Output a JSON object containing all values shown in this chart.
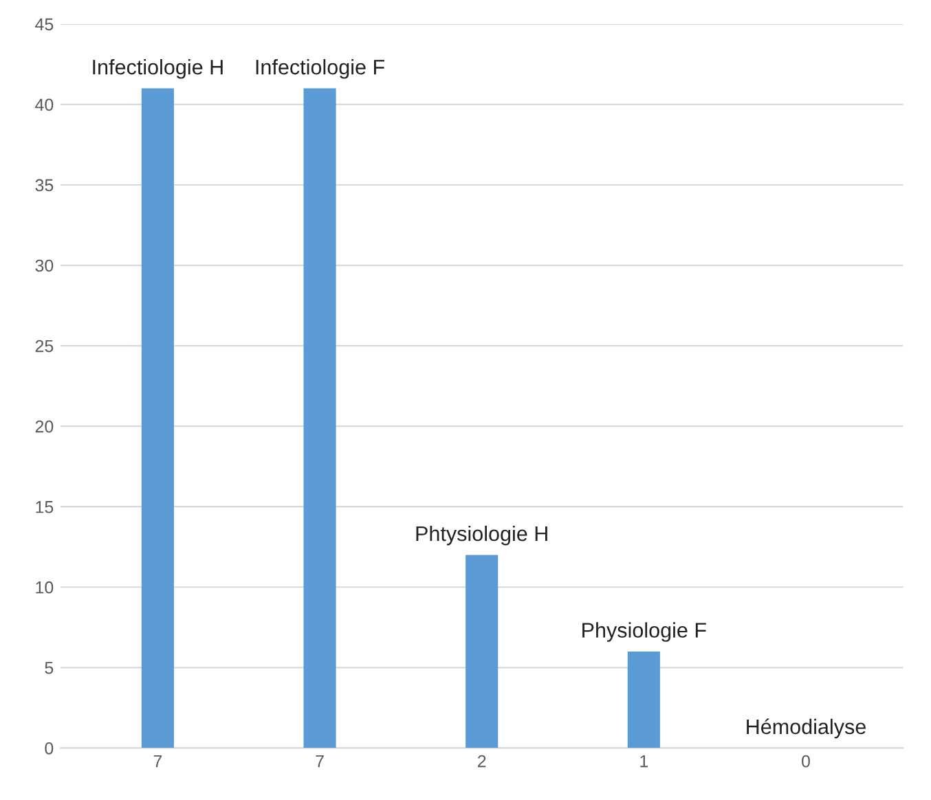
{
  "chart_data": {
    "type": "bar",
    "categories": [
      "7",
      "7",
      "2",
      "1",
      "0"
    ],
    "values": [
      41,
      41,
      12,
      6,
      0
    ],
    "value_labels": [
      "Infectiologie H",
      "Infectiologie F",
      "Phtysiologie H",
      "Physiologie F",
      "Hémodialyse"
    ],
    "color": "#5b9bd5",
    "ylim": [
      0,
      45
    ],
    "yticks": [
      0,
      5,
      10,
      15,
      20,
      25,
      30,
      35,
      40,
      45
    ],
    "grid": "y"
  }
}
